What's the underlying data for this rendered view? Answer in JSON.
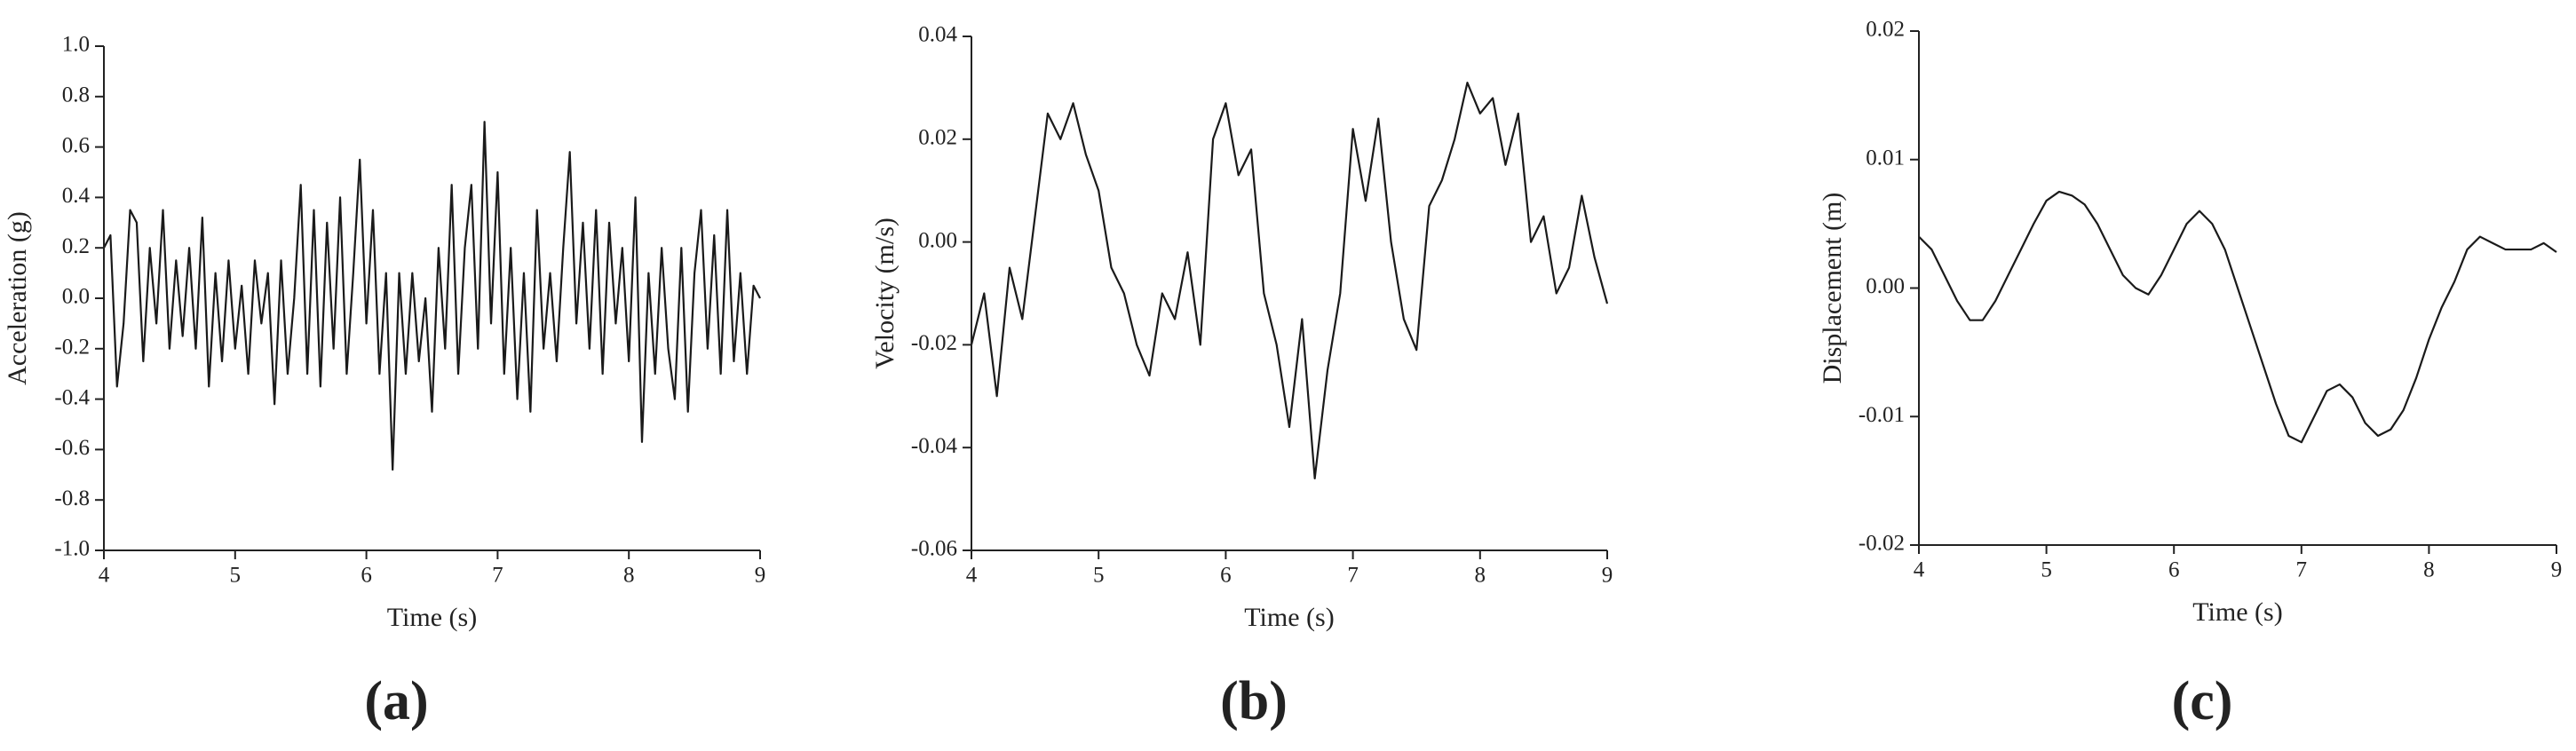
{
  "chart_data": [
    {
      "type": "line",
      "caption": "(a)",
      "xlabel": "Time (s)",
      "ylabel": "Acceleration (g)",
      "color": "#1a1a1a",
      "xlim": [
        4,
        9
      ],
      "ylim": [
        -1,
        1
      ],
      "xticks": [
        4,
        5,
        6,
        7,
        8,
        9
      ],
      "yticks": [
        {
          "value": -1,
          "label": "-1.0"
        },
        -0.8,
        -0.6,
        -0.4,
        -0.2,
        {
          "value": 0,
          "label": "0.0"
        },
        0.2,
        0.4,
        0.6,
        0.8,
        {
          "value": 1,
          "label": "1.0"
        }
      ],
      "x": [
        4.0,
        4.05,
        4.1,
        4.15,
        4.2,
        4.25,
        4.3,
        4.35,
        4.4,
        4.45,
        4.5,
        4.55,
        4.6,
        4.65,
        4.7,
        4.75,
        4.8,
        4.85,
        4.9,
        4.95,
        5.0,
        5.05,
        5.1,
        5.15,
        5.2,
        5.25,
        5.3,
        5.35,
        5.4,
        5.45,
        5.5,
        5.55,
        5.6,
        5.65,
        5.7,
        5.75,
        5.8,
        5.85,
        5.9,
        5.95,
        6.0,
        6.05,
        6.1,
        6.15,
        6.2,
        6.25,
        6.3,
        6.35,
        6.4,
        6.45,
        6.5,
        6.55,
        6.6,
        6.65,
        6.7,
        6.75,
        6.8,
        6.85,
        6.9,
        6.95,
        7.0,
        7.05,
        7.1,
        7.15,
        7.2,
        7.25,
        7.3,
        7.35,
        7.4,
        7.45,
        7.5,
        7.55,
        7.6,
        7.65,
        7.7,
        7.75,
        7.8,
        7.85,
        7.9,
        7.95,
        8.0,
        8.05,
        8.1,
        8.15,
        8.2,
        8.25,
        8.3,
        8.35,
        8.4,
        8.45,
        8.5,
        8.55,
        8.6,
        8.65,
        8.7,
        8.75,
        8.8,
        8.85,
        8.9,
        8.95,
        9.0
      ],
      "values": [
        0.2,
        0.25,
        -0.35,
        -0.1,
        0.35,
        0.3,
        -0.25,
        0.2,
        -0.1,
        0.35,
        -0.2,
        0.15,
        -0.15,
        0.2,
        -0.2,
        0.32,
        -0.35,
        0.1,
        -0.25,
        0.15,
        -0.2,
        0.05,
        -0.3,
        0.15,
        -0.1,
        0.1,
        -0.42,
        0.15,
        -0.3,
        0.0,
        0.45,
        -0.3,
        0.35,
        -0.35,
        0.3,
        -0.2,
        0.4,
        -0.3,
        0.1,
        0.55,
        -0.1,
        0.35,
        -0.3,
        0.1,
        -0.68,
        0.1,
        -0.3,
        0.1,
        -0.25,
        0.0,
        -0.45,
        0.2,
        -0.2,
        0.45,
        -0.3,
        0.2,
        0.45,
        -0.2,
        0.7,
        -0.1,
        0.5,
        -0.3,
        0.2,
        -0.4,
        0.1,
        -0.45,
        0.35,
        -0.2,
        0.1,
        -0.25,
        0.2,
        0.58,
        -0.1,
        0.3,
        -0.2,
        0.35,
        -0.3,
        0.3,
        -0.1,
        0.2,
        -0.25,
        0.4,
        -0.57,
        0.1,
        -0.3,
        0.2,
        -0.2,
        -0.4,
        0.2,
        -0.45,
        0.1,
        0.35,
        -0.2,
        0.25,
        -0.3,
        0.35,
        -0.25,
        0.1,
        -0.3,
        0.05,
        0.0
      ]
    },
    {
      "type": "line",
      "caption": "(b)",
      "xlabel": "Time (s)",
      "ylabel": "Velocity (m/s)",
      "color": "#1a1a1a",
      "xlim": [
        4,
        9
      ],
      "ylim": [
        -0.06,
        0.04
      ],
      "xticks": [
        4,
        5,
        6,
        7,
        8,
        9
      ],
      "yticks": [
        -0.06,
        -0.04,
        -0.02,
        {
          "value": 0,
          "label": "0.00"
        },
        0.02,
        0.04
      ],
      "x": [
        4.0,
        4.1,
        4.2,
        4.3,
        4.4,
        4.5,
        4.6,
        4.7,
        4.8,
        4.9,
        5.0,
        5.1,
        5.2,
        5.3,
        5.4,
        5.5,
        5.6,
        5.7,
        5.8,
        5.9,
        6.0,
        6.1,
        6.2,
        6.3,
        6.4,
        6.5,
        6.6,
        6.7,
        6.8,
        6.9,
        7.0,
        7.1,
        7.2,
        7.3,
        7.4,
        7.5,
        7.6,
        7.7,
        7.8,
        7.9,
        8.0,
        8.1,
        8.2,
        8.3,
        8.4,
        8.5,
        8.6,
        8.7,
        8.8,
        8.9,
        9.0
      ],
      "values": [
        -0.02,
        -0.01,
        -0.03,
        -0.005,
        -0.015,
        0.005,
        0.025,
        0.02,
        0.027,
        0.017,
        0.01,
        -0.005,
        -0.01,
        -0.02,
        -0.026,
        -0.01,
        -0.015,
        -0.002,
        -0.02,
        0.02,
        0.027,
        0.013,
        0.018,
        -0.01,
        -0.02,
        -0.036,
        -0.015,
        -0.046,
        -0.025,
        -0.01,
        0.022,
        0.008,
        0.024,
        0.0,
        -0.015,
        -0.021,
        0.007,
        0.012,
        0.02,
        0.031,
        0.025,
        0.028,
        0.015,
        0.025,
        0.0,
        0.005,
        -0.01,
        -0.005,
        0.009,
        -0.003,
        -0.012
      ]
    },
    {
      "type": "line",
      "caption": "(c)",
      "xlabel": "Time (s)",
      "ylabel": "Displacement (m)",
      "color": "#1a1a1a",
      "xlim": [
        4,
        9
      ],
      "ylim": [
        -0.02,
        0.02
      ],
      "xticks": [
        4,
        5,
        6,
        7,
        8,
        9
      ],
      "yticks": [
        -0.02,
        -0.01,
        {
          "value": 0,
          "label": "0.00"
        },
        0.01,
        0.02
      ],
      "x": [
        4.0,
        4.1,
        4.2,
        4.3,
        4.4,
        4.5,
        4.6,
        4.7,
        4.8,
        4.9,
        5.0,
        5.1,
        5.2,
        5.3,
        5.4,
        5.5,
        5.6,
        5.7,
        5.8,
        5.9,
        6.0,
        6.1,
        6.2,
        6.3,
        6.4,
        6.5,
        6.6,
        6.7,
        6.8,
        6.9,
        7.0,
        7.1,
        7.2,
        7.3,
        7.4,
        7.5,
        7.6,
        7.7,
        7.8,
        7.9,
        8.0,
        8.1,
        8.2,
        8.3,
        8.4,
        8.5,
        8.6,
        8.7,
        8.8,
        8.9,
        9.0
      ],
      "values": [
        0.004,
        0.003,
        0.001,
        -0.001,
        -0.0025,
        -0.0025,
        -0.001,
        0.001,
        0.003,
        0.005,
        0.0068,
        0.0075,
        0.0072,
        0.0065,
        0.005,
        0.003,
        0.001,
        0.0,
        -0.0005,
        0.001,
        0.003,
        0.005,
        0.006,
        0.005,
        0.003,
        0.0,
        -0.003,
        -0.006,
        -0.009,
        -0.0115,
        -0.012,
        -0.01,
        -0.008,
        -0.0075,
        -0.0085,
        -0.0105,
        -0.0115,
        -0.011,
        -0.0095,
        -0.007,
        -0.004,
        -0.0015,
        0.0005,
        0.003,
        0.004,
        0.0035,
        0.003,
        0.003,
        0.003,
        0.0035,
        0.0028
      ]
    }
  ]
}
